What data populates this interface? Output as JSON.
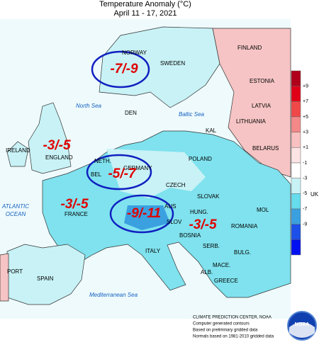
{
  "map": {
    "title": "Temperature Anomaly (°C)",
    "subtitle": "April 11 - 17, 2021",
    "countries": [
      "FINLAND",
      "NORWAY",
      "SWEDEN",
      "ESTONIA",
      "LATVIA",
      "DEN",
      "LITHUANIA",
      "KAL",
      "BELARUS",
      "IRELAND",
      "ENGLAND",
      "NETH.",
      "BEL",
      "GERMANY",
      "POLAND",
      "CZECH",
      "SLOVAK",
      "UK",
      "FRANCE",
      "AUS",
      "HUNG.",
      "MOL",
      "ROMANIA",
      "SLOV",
      "BOSNIA",
      "ITALY",
      "SERB.",
      "BULG.",
      "MACE.",
      "ALB.",
      "PORT",
      "SPAIN",
      "GREECE"
    ],
    "seas": [
      "North Sea",
      "Baltic Sea",
      "ATLANTIC",
      "OCEAN",
      "Mediterranean Sea"
    ],
    "annotations": [
      "-7/-9",
      "-3/-5",
      "-5/-7",
      "-3/-5",
      "-9/-11",
      "-3/-5"
    ],
    "legend": {
      "labels": [
        "+9",
        "+7",
        "+5",
        "+3",
        "+1",
        "-1",
        "-3",
        "-5",
        "-7",
        "-9"
      ],
      "colors": [
        "#b0001a",
        "#e00018",
        "#f04848",
        "#f48888",
        "#f8c0c0",
        "#fce4e4",
        "#ffffff",
        "#c8f2f6",
        "#66dcec",
        "#3aa0e0",
        "#1c50e8",
        "#0010f0"
      ]
    },
    "footer": [
      "CLIMATE PREDICTION CENTER, NOAA",
      "Computer generated contours",
      "Based on preliminary gridded data",
      "Normals based on 1981-2010 gridded data"
    ],
    "logo": "NOAA"
  }
}
